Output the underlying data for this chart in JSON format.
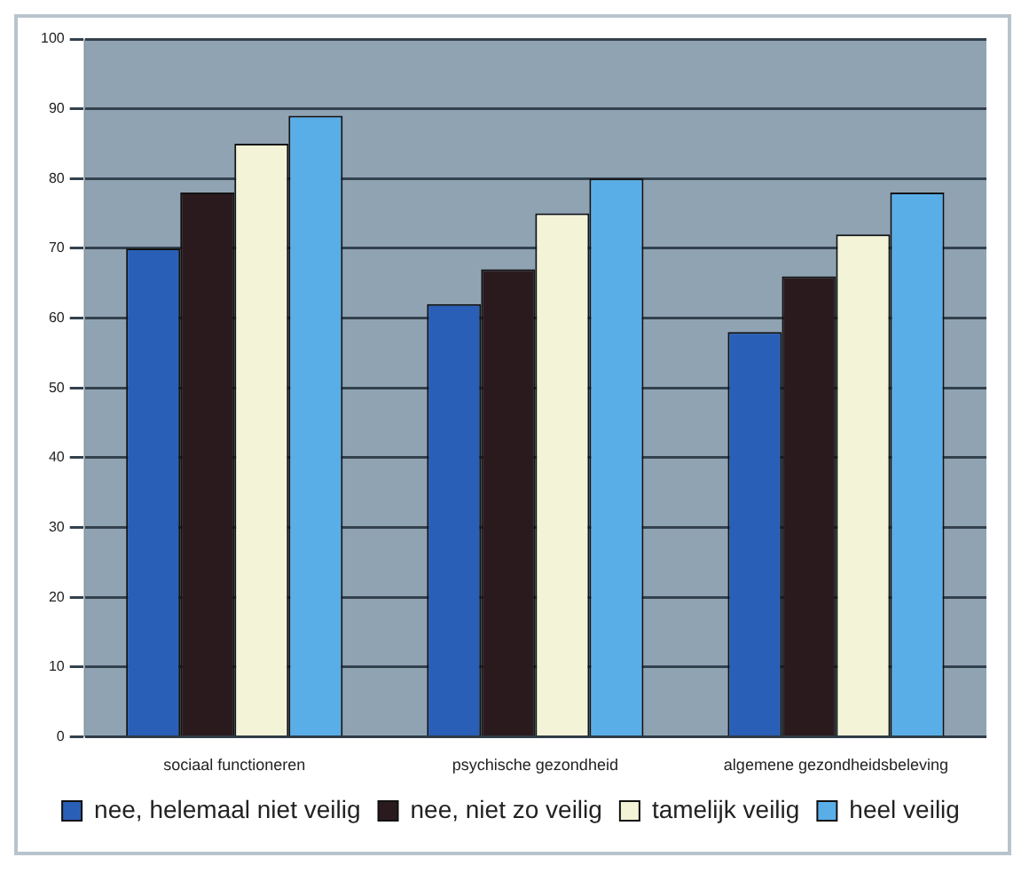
{
  "chart_data": {
    "type": "bar",
    "categories": [
      "sociaal functioneren",
      "psychische gezondheid",
      "algemene gezondheidsbeleving"
    ],
    "series": [
      {
        "name": "nee, helemaal niet veilig",
        "color": "#2a5fb8",
        "values": [
          70,
          62,
          58
        ]
      },
      {
        "name": "nee, niet zo veilig",
        "color": "#2a1a1e",
        "values": [
          78,
          67,
          66
        ]
      },
      {
        "name": "tamelijk veilig",
        "color": "#f3f3d8",
        "values": [
          85,
          75,
          72
        ]
      },
      {
        "name": "heel veilig",
        "color": "#5aaee8",
        "values": [
          89,
          80,
          78
        ]
      }
    ],
    "ylim": [
      0,
      100
    ],
    "yticks": [
      0,
      10,
      20,
      30,
      40,
      50,
      60,
      70,
      80,
      90,
      100
    ],
    "grid": "y",
    "legend": "bottom"
  }
}
